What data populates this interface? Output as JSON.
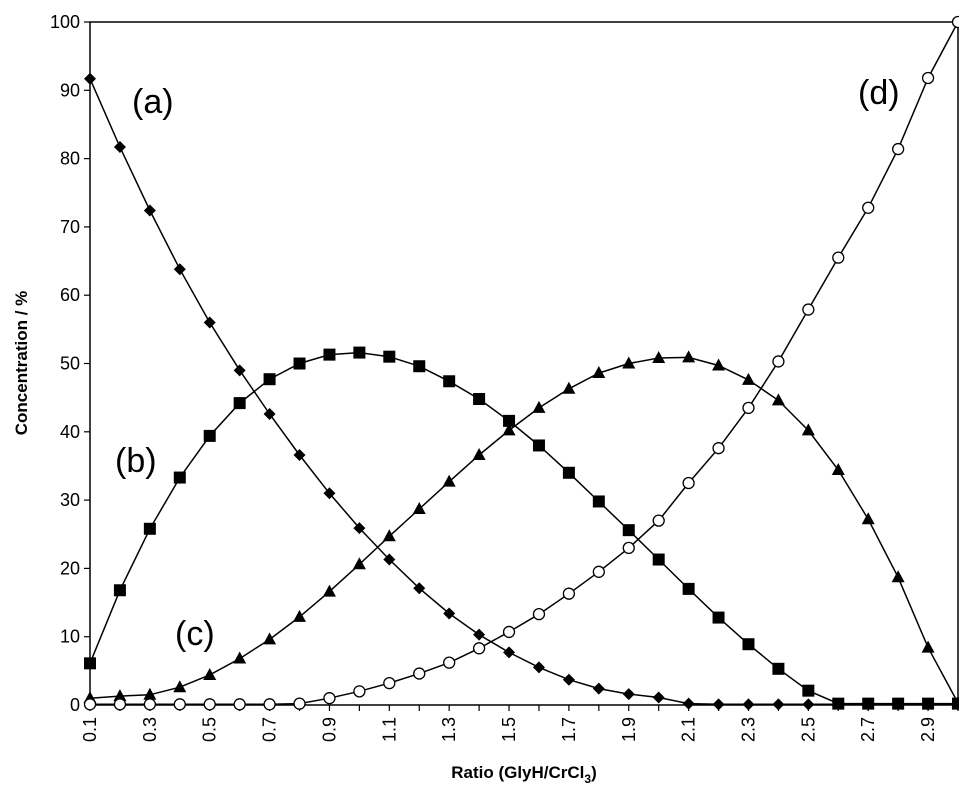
{
  "chart_data": {
    "type": "line",
    "xlabel_main": "Ratio (GlyH/CrCl",
    "xlabel_sub": "3",
    "xlabel_tail": ")",
    "ylabel": "Concentration / %",
    "xlim": [
      0.1,
      3.0
    ],
    "ylim": [
      0,
      100
    ],
    "x_ticks": [
      "0.1",
      "0.3",
      "0.5",
      "0.7",
      "0.9",
      "1.1",
      "1.3",
      "1.5",
      "1.7",
      "1.9",
      "2.1",
      "2.3",
      "2.5",
      "2.7",
      "2.9"
    ],
    "y_ticks": [
      "0",
      "10",
      "20",
      "30",
      "40",
      "50",
      "60",
      "70",
      "80",
      "90",
      "100"
    ],
    "grid": false,
    "x": [
      0.1,
      0.2,
      0.3,
      0.4,
      0.5,
      0.6,
      0.7,
      0.8,
      0.9,
      1.0,
      1.1,
      1.2,
      1.3,
      1.4,
      1.5,
      1.6,
      1.7,
      1.8,
      1.9,
      2.0,
      2.1,
      2.2,
      2.3,
      2.4,
      2.5,
      2.6,
      2.7,
      2.8,
      2.9,
      3.0
    ],
    "series": [
      {
        "name": "(a)",
        "marker": "diamond",
        "values": [
          91.7,
          81.7,
          72.4,
          63.8,
          56.0,
          49.0,
          42.6,
          36.6,
          31.0,
          25.9,
          21.3,
          17.1,
          13.4,
          10.3,
          7.7,
          5.5,
          3.7,
          2.4,
          1.6,
          1.1,
          0.2,
          0.1,
          0.1,
          0.1,
          0.1,
          0.1,
          0.1,
          0.1,
          0.1,
          0.1
        ]
      },
      {
        "name": "(b)",
        "marker": "square",
        "values": [
          6.1,
          16.8,
          25.8,
          33.3,
          39.4,
          44.2,
          47.7,
          50.0,
          51.3,
          51.6,
          51.0,
          49.6,
          47.4,
          44.8,
          41.6,
          38.0,
          34.0,
          29.8,
          25.6,
          21.3,
          17.0,
          12.8,
          8.9,
          5.3,
          2.1,
          0.2,
          0.2,
          0.2,
          0.2,
          0.2
        ]
      },
      {
        "name": "(c)",
        "marker": "triangle",
        "values": [
          1.0,
          1.3,
          1.5,
          2.6,
          4.4,
          6.8,
          9.6,
          12.9,
          16.6,
          20.6,
          24.7,
          28.7,
          32.7,
          36.6,
          40.2,
          43.5,
          46.3,
          48.6,
          50.0,
          50.8,
          50.9,
          49.7,
          47.6,
          44.6,
          40.2,
          34.4,
          27.2,
          18.7,
          8.4,
          0.3
        ]
      },
      {
        "name": "(d)",
        "marker": "open-circle",
        "values": [
          0.1,
          0.1,
          0.1,
          0.1,
          0.1,
          0.1,
          0.1,
          0.2,
          1.0,
          2.0,
          3.2,
          4.6,
          6.2,
          8.3,
          10.7,
          13.3,
          16.3,
          19.5,
          23.0,
          27.0,
          32.5,
          37.6,
          43.5,
          50.3,
          57.9,
          65.5,
          72.8,
          81.4,
          91.8,
          100.0
        ]
      }
    ]
  }
}
